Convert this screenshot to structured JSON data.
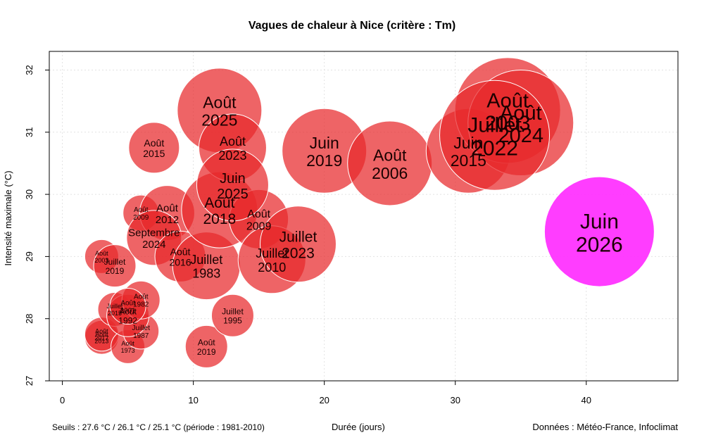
{
  "chart_data": {
    "type": "bubble",
    "title": "Vagues de chaleur à Nice (critère : Tm)",
    "xlabel": "Durée (jours)",
    "ylabel": "Intensité maximale (°C)",
    "footer_left": "Seuils : 27.6 °C / 26.1 °C / 25.1 °C (période : 1981-2010)",
    "footer_right": "Données : Météo-France, Infoclimat",
    "xlim": [
      -1,
      47
    ],
    "ylim": [
      27,
      32.3
    ],
    "x_ticks": [
      0,
      10,
      20,
      30,
      40
    ],
    "y_ticks": [
      27,
      28,
      29,
      30,
      31,
      32
    ],
    "grid": true,
    "colors": {
      "past": "#e8282b",
      "current": "#ff33ff"
    },
    "points": [
      {
        "month": "Août",
        "year": "2013",
        "x": 3,
        "y": 27.7,
        "size": 0.8
      },
      {
        "month": "Août",
        "year": "2017",
        "x": 3,
        "y": 27.75,
        "size": 0.8
      },
      {
        "month": "Août",
        "year": "2003",
        "x": 3,
        "y": 29.0,
        "size": 0.8
      },
      {
        "month": "Juillet",
        "year": "2019",
        "x": 4,
        "y": 28.85,
        "size": 1.0
      },
      {
        "month": "Juillet",
        "year": "2015",
        "x": 4,
        "y": 28.15,
        "size": 0.8
      },
      {
        "month": "Août",
        "year": "1973",
        "x": 5,
        "y": 27.55,
        "size": 0.8
      },
      {
        "month": "Juillet",
        "year": "1987",
        "x": 6,
        "y": 27.8,
        "size": 0.85
      },
      {
        "month": "Août",
        "year": "1992",
        "x": 5,
        "y": 28.05,
        "size": 1.0
      },
      {
        "month": "Août",
        "year": "1982",
        "x": 6,
        "y": 28.3,
        "size": 0.9
      },
      {
        "month": "Août",
        "year": "2001",
        "x": 5,
        "y": 28.2,
        "size": 0.85
      },
      {
        "month": "Août",
        "year": "2009",
        "x": 6,
        "y": 29.7,
        "size": 0.85
      },
      {
        "month": "Août",
        "year": "2012",
        "x": 8,
        "y": 29.7,
        "size": 1.3
      },
      {
        "month": "Septembre",
        "year": "2024",
        "x": 7,
        "y": 29.3,
        "size": 1.3
      },
      {
        "month": "Août",
        "year": "2015",
        "x": 7,
        "y": 30.75,
        "size": 1.2
      },
      {
        "month": "Août",
        "year": "2016",
        "x": 9,
        "y": 29.0,
        "size": 1.2
      },
      {
        "month": "Juillet",
        "year": "1983",
        "x": 11,
        "y": 28.85,
        "size": 1.6
      },
      {
        "month": "Août",
        "year": "2019",
        "x": 11,
        "y": 27.55,
        "size": 1.0
      },
      {
        "month": "Juillet",
        "year": "1995",
        "x": 13,
        "y": 28.05,
        "size": 1.0
      },
      {
        "month": "Août",
        "year": "2018",
        "x": 12,
        "y": 29.75,
        "size": 1.8
      },
      {
        "month": "Août",
        "year": "2009",
        "x": 15,
        "y": 29.6,
        "size": 1.4
      },
      {
        "month": "Août",
        "year": "2025",
        "x": 12,
        "y": 31.35,
        "size": 2.0
      },
      {
        "month": "Août",
        "year": "2023",
        "x": 13,
        "y": 30.75,
        "size": 1.6
      },
      {
        "month": "Juin",
        "year": "2025",
        "x": 13,
        "y": 30.15,
        "size": 1.7
      },
      {
        "month": "Juillet",
        "year": "2010",
        "x": 16,
        "y": 28.95,
        "size": 1.6
      },
      {
        "month": "Juillet",
        "year": "2023",
        "x": 18,
        "y": 29.2,
        "size": 1.8
      },
      {
        "month": "Juin",
        "year": "2019",
        "x": 20,
        "y": 30.7,
        "size": 2.0
      },
      {
        "month": "Août",
        "year": "2006",
        "x": 25,
        "y": 30.5,
        "size": 2.0
      },
      {
        "month": "Juin",
        "year": "2015",
        "x": 31,
        "y": 30.7,
        "size": 2.0
      },
      {
        "month": "Août",
        "year": "2003",
        "x": 34,
        "y": 31.35,
        "size": 2.5
      },
      {
        "month": "Août",
        "year": "2024",
        "x": 35,
        "y": 31.15,
        "size": 2.5
      },
      {
        "month": "Juillet",
        "year": "2022",
        "x": 33,
        "y": 30.95,
        "size": 2.6
      },
      {
        "month": "Juin",
        "year": "2026",
        "x": 41,
        "y": 29.4,
        "size": 2.6,
        "current": true
      }
    ]
  }
}
